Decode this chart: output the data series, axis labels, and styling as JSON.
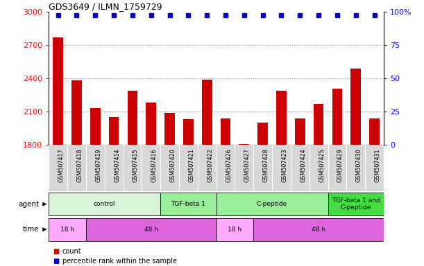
{
  "title": "GDS3649 / ILMN_1759729",
  "samples": [
    "GSM507417",
    "GSM507418",
    "GSM507419",
    "GSM507414",
    "GSM507415",
    "GSM507416",
    "GSM507420",
    "GSM507421",
    "GSM507422",
    "GSM507426",
    "GSM507427",
    "GSM507428",
    "GSM507423",
    "GSM507424",
    "GSM507425",
    "GSM507429",
    "GSM507430",
    "GSM507431"
  ],
  "counts": [
    2770,
    2380,
    2130,
    2050,
    2290,
    2180,
    2090,
    2030,
    2390,
    2040,
    1810,
    2000,
    2290,
    2040,
    2170,
    2310,
    2490,
    2040
  ],
  "percentile_vals": [
    2970,
    2970,
    2970,
    2970,
    2970,
    2970,
    2970,
    2970,
    2970,
    2970,
    2970,
    2970,
    2970,
    2970,
    2970,
    2970,
    2970,
    2970
  ],
  "bar_color": "#cc0000",
  "dot_color": "#0000cc",
  "ylim_left": [
    1800,
    3000
  ],
  "ylim_right": [
    0,
    100
  ],
  "yticks_left": [
    1800,
    2100,
    2400,
    2700,
    3000
  ],
  "yticks_right": [
    0,
    25,
    50,
    75,
    100
  ],
  "agent_groups": [
    {
      "label": "control",
      "start": 0,
      "end": 6,
      "color": "#d9f5d9"
    },
    {
      "label": "TGF-beta 1",
      "start": 6,
      "end": 9,
      "color": "#99ee99"
    },
    {
      "label": "C-peptide",
      "start": 9,
      "end": 15,
      "color": "#99ee99"
    },
    {
      "label": "TGF-beta 1 and\nC-peptide",
      "start": 15,
      "end": 18,
      "color": "#44dd44"
    }
  ],
  "time_groups": [
    {
      "label": "18 h",
      "start": 0,
      "end": 2,
      "color": "#ffaaff"
    },
    {
      "label": "48 h",
      "start": 2,
      "end": 9,
      "color": "#dd66dd"
    },
    {
      "label": "18 h",
      "start": 9,
      "end": 11,
      "color": "#ffaaff"
    },
    {
      "label": "48 h",
      "start": 11,
      "end": 18,
      "color": "#dd66dd"
    }
  ],
  "legend_count_color": "#cc0000",
  "legend_pct_color": "#0000cc",
  "bg_color": "#ffffff",
  "xlabel_bg": "#d8d8d8",
  "grid_color": "#888888",
  "chart_bg": "#ffffff"
}
